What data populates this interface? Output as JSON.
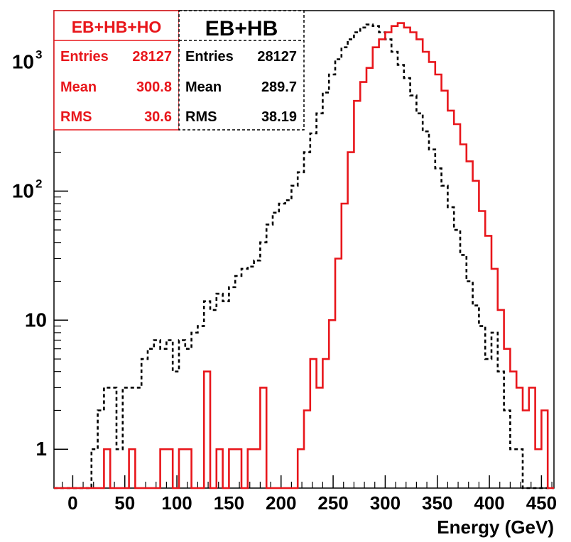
{
  "chart_data": {
    "type": "histogram",
    "xlabel": "Energy (GeV)",
    "ylabel": "",
    "xlim": [
      -18,
      462
    ],
    "ylim": [
      0.5,
      2500
    ],
    "yscale": "log",
    "bin_width": 6,
    "xticks": [
      0,
      50,
      100,
      150,
      200,
      250,
      300,
      350,
      400,
      450
    ],
    "yticks": [
      {
        "value": 1,
        "label": "1"
      },
      {
        "value": 10,
        "label": "10"
      },
      {
        "value": 100,
        "label": "10",
        "exp": "2"
      },
      {
        "value": 1000,
        "label": "10",
        "exp": "3"
      }
    ],
    "x_edges": [
      -18,
      -12,
      -6,
      0,
      6,
      12,
      18,
      24,
      30,
      36,
      42,
      48,
      54,
      60,
      66,
      72,
      78,
      84,
      90,
      96,
      102,
      108,
      114,
      120,
      126,
      132,
      138,
      144,
      150,
      156,
      162,
      168,
      174,
      180,
      186,
      192,
      198,
      204,
      210,
      216,
      222,
      228,
      234,
      240,
      246,
      252,
      258,
      264,
      270,
      276,
      282,
      288,
      294,
      300,
      306,
      312,
      318,
      324,
      330,
      336,
      342,
      348,
      354,
      360,
      366,
      372,
      378,
      384,
      390,
      396,
      402,
      408,
      414,
      420,
      426,
      432,
      438,
      444,
      450,
      456,
      462
    ],
    "series": [
      {
        "name": "EB+HB+HO",
        "color": "#e8161b",
        "line": "solid",
        "stats": {
          "entries_label": "Entries",
          "entries": "28127",
          "mean_label": "Mean",
          "mean": "300.8",
          "rms_label": "RMS",
          "rms": "30.6"
        },
        "values": [
          0,
          0,
          0,
          0,
          0,
          0,
          0,
          0,
          1,
          0,
          0,
          0,
          1,
          0,
          0,
          0,
          0,
          1,
          1,
          0,
          1,
          1,
          0,
          0,
          4,
          0,
          1,
          0,
          1,
          1,
          0,
          1,
          1,
          3,
          0,
          0,
          0,
          0,
          0,
          1,
          2,
          5,
          3,
          5,
          10,
          30,
          80,
          200,
          500,
          700,
          900,
          1300,
          1500,
          1700,
          1900,
          2000,
          1850,
          1700,
          1500,
          1200,
          1000,
          800,
          600,
          420,
          330,
          230,
          170,
          120,
          70,
          45,
          25,
          12,
          6,
          4,
          3,
          2,
          3,
          1,
          2,
          0
        ]
      },
      {
        "name": "EB+HB",
        "color": "#000000",
        "line": "dashed",
        "stats": {
          "entries_label": "Entries",
          "entries": "28127",
          "mean_label": "Mean",
          "mean": "289.7",
          "rms_label": "RMS",
          "rms": "38.19"
        },
        "values": [
          0,
          0,
          0,
          0,
          0,
          0,
          1,
          2,
          3,
          3,
          1,
          3,
          3,
          3,
          5,
          6,
          7,
          6,
          7,
          4,
          7,
          6,
          8,
          9,
          14,
          12,
          16,
          14,
          18,
          22,
          25,
          26,
          29,
          40,
          55,
          68,
          80,
          85,
          110,
          140,
          200,
          280,
          400,
          580,
          800,
          1050,
          1300,
          1500,
          1700,
          1850,
          1950,
          1900,
          1700,
          1500,
          1200,
          950,
          750,
          550,
          400,
          290,
          210,
          150,
          110,
          75,
          50,
          32,
          20,
          13,
          9,
          5,
          8,
          4,
          2,
          1,
          1,
          0,
          0,
          0,
          0,
          0
        ]
      }
    ]
  }
}
